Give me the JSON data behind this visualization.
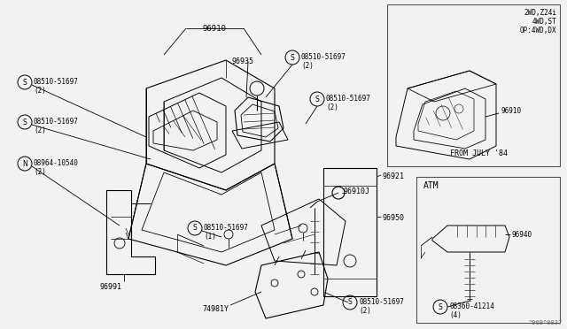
{
  "bg_color": "#f0f0f0",
  "line_color": "#000000",
  "text_color": "#000000",
  "gray_color": "#888888",
  "part_number_ref": "^969^0037",
  "inset1_lines": [
    "2WD,Z24i",
    "4WD,ST",
    "OP:4WD,DX"
  ],
  "inset1_footer": "FROM JULY '84",
  "inset1_part": "96910",
  "inset2_title": "ATM",
  "inset2_part": "96940",
  "inset2_screw": "08360-41214",
  "inset2_screw_qty": "(4)"
}
